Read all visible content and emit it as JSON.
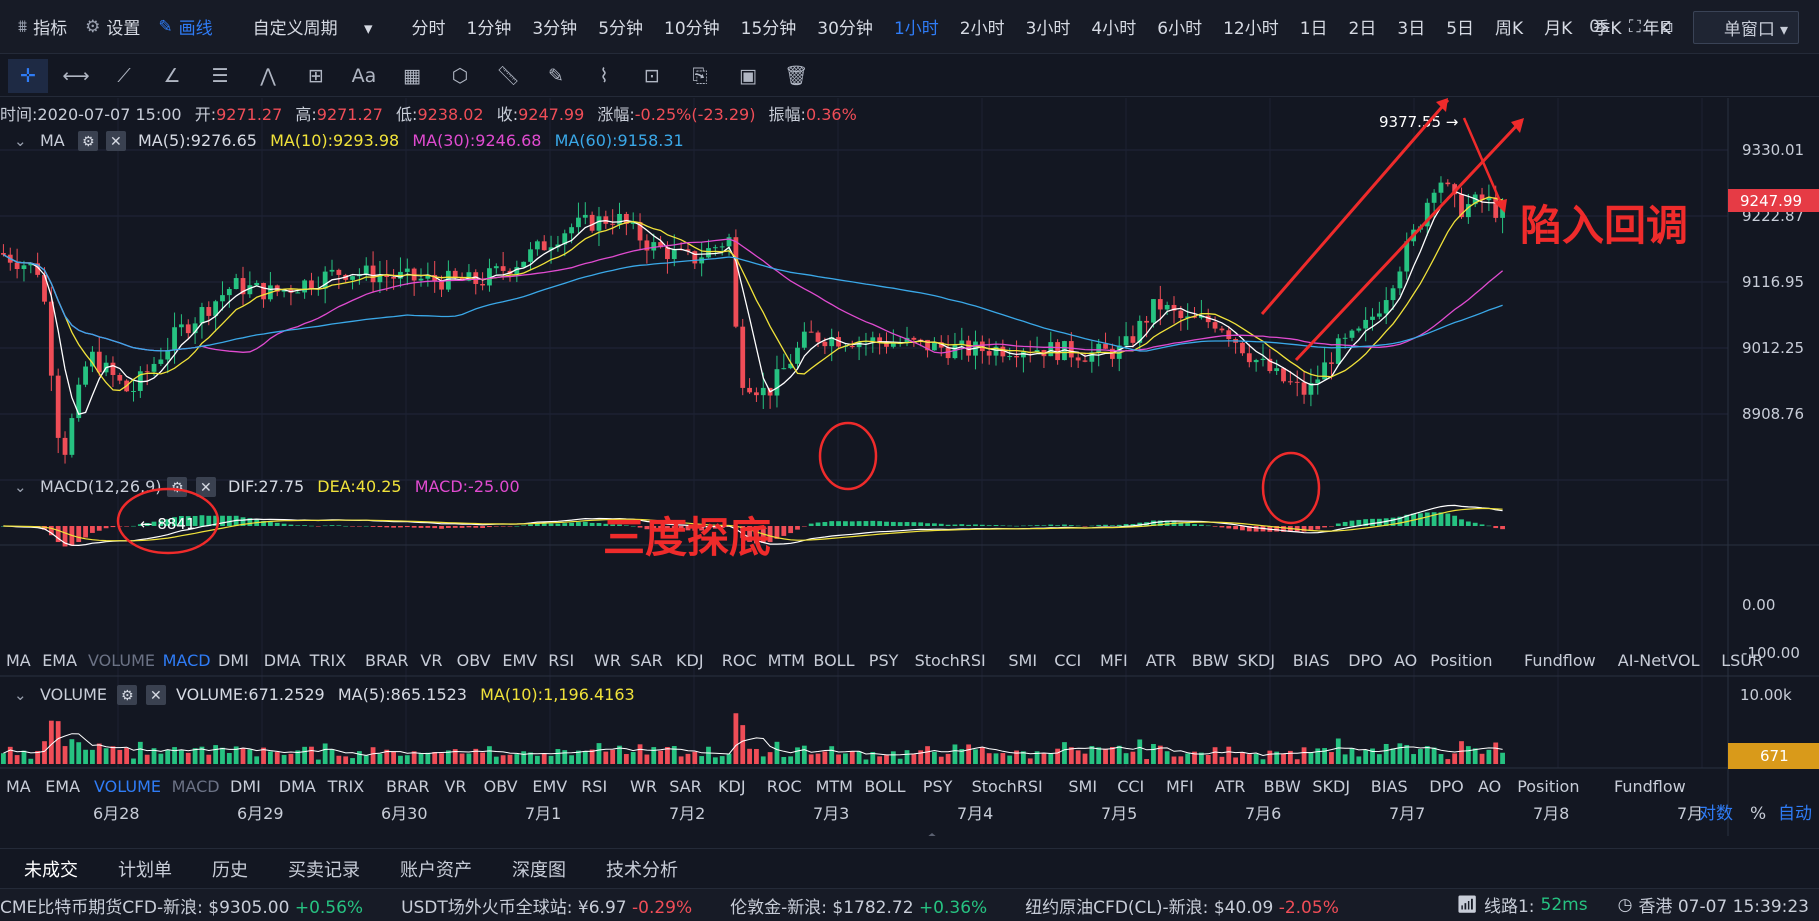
{
  "topbar": {
    "indicators": "指标",
    "settings": "设置",
    "draw": "画线",
    "custom_period": "自定义周期",
    "periods": [
      "分时",
      "1分钟",
      "3分钟",
      "5分钟",
      "10分钟",
      "15分钟",
      "30分钟",
      "1小时",
      "2小时",
      "3小时",
      "4小时",
      "6小时",
      "12小时",
      "1日",
      "2日",
      "3日",
      "5日",
      "周K",
      "月K",
      "季K",
      "年K"
    ],
    "selected_period": "1小时",
    "latency": "0s",
    "window_mode": "单窗口"
  },
  "toolbar": {
    "tools": [
      "crosshair-icon",
      "horizontal-line-icon",
      "trend-line-icon",
      "angle-icon",
      "parallel-channel-icon",
      "wave-icon",
      "measure-icon",
      "text-icon",
      "fib-icon",
      "shape-icon",
      "ruler-icon",
      "brush-icon",
      "pattern-icon",
      "lock-icon",
      "copy-icon",
      "screenshot-icon",
      "trash-icon"
    ],
    "text_tool_label": "Aa"
  },
  "info": {
    "time_label": "时间:",
    "time": "2020-07-07 15:00",
    "open_label": "开:",
    "open": "9271.27",
    "high_label": "高:",
    "high": "9271.27",
    "low_label": "低:",
    "low": "9238.02",
    "close_label": "收:",
    "close": "9247.99",
    "change_label": "涨幅:",
    "change": "-0.25%(-23.29)",
    "amplitude_label": "振幅:",
    "amplitude": "0.36%"
  },
  "ma_legend": {
    "name": "MA",
    "ma5": "MA(5):9276.65",
    "ma10": "MA(10):9293.98",
    "ma30": "MA(30):9246.68",
    "ma60": "MA(60):9158.31"
  },
  "macd_legend": {
    "name": "MACD(12,26,9)",
    "dif": "DIF:27.75",
    "dea": "DEA:40.25",
    "macd": "MACD:-25.00"
  },
  "volume_legend": {
    "name": "VOLUME",
    "volume": "VOLUME:671.2529",
    "ma5": "MA(5):865.1523",
    "ma10": "MA(10):1,196.4163"
  },
  "indicator_tabs_1": [
    "MA",
    "EMA",
    "VOLUME",
    "MACD",
    "DMI",
    "DMA",
    "TRIX",
    "BRAR",
    "VR",
    "OBV",
    "EMV",
    "RSI",
    "WR",
    "SAR",
    "KDJ",
    "ROC",
    "MTM",
    "BOLL",
    "PSY",
    "StochRSI",
    "SMI",
    "CCI",
    "MFI",
    "ATR",
    "BBW",
    "SKDJ",
    "BIAS",
    "DPO",
    "AO",
    "Position",
    "Fundflow",
    "AI-NetVOL",
    "LSUR"
  ],
  "indicator_tabs_1_selected": "MACD",
  "indicator_tabs_1_dim": "VOLUME",
  "indicator_tabs_2": [
    "MA",
    "EMA",
    "VOLUME",
    "MACD",
    "DMI",
    "DMA",
    "TRIX",
    "BRAR",
    "VR",
    "OBV",
    "EMV",
    "RSI",
    "WR",
    "SAR",
    "KDJ",
    "ROC",
    "MTM",
    "BOLL",
    "PSY",
    "StochRSI",
    "SMI",
    "CCI",
    "MFI",
    "ATR",
    "BBW",
    "SKDJ",
    "BIAS",
    "DPO",
    "AO",
    "Position",
    "Fundflow"
  ],
  "indicator_tabs_2_selected": "VOLUME",
  "indicator_tabs_2_dim": "MACD",
  "annotations": {
    "low_label": "← 8841",
    "high_label": "9377.55 →",
    "triple_bottom": "三度探底",
    "pullback": "陷入回调"
  },
  "axis_controls": {
    "log": "对数",
    "percent": "%",
    "auto": "自动"
  },
  "bottom_tabs": [
    "未成交",
    "计划单",
    "历史",
    "买卖记录",
    "账户资产",
    "深度图",
    "技术分析"
  ],
  "bottom_tabs_selected": "未成交",
  "ticker": [
    {
      "name": "CME比特币期货CFD-新浪:",
      "price": "$9305.00",
      "change": "+0.56%",
      "dir": "up"
    },
    {
      "name": "USDT场外火币全球站:",
      "price": "¥6.97",
      "change": "-0.29%",
      "dir": "down"
    },
    {
      "name": "伦敦金-新浪:",
      "price": "$1782.72",
      "change": "+0.36%",
      "dir": "up"
    },
    {
      "name": "纽约原油CFD(CL)-新浪:",
      "price": "$40.09",
      "change": "-2.05%",
      "dir": "down"
    }
  ],
  "status": {
    "line_label": "线路1:",
    "latency": "52ms",
    "region_time": "香港 07-07 15:39:23"
  },
  "colors": {
    "up": "#26c281",
    "down": "#ef4d57",
    "ma5": "#ffffff",
    "ma10": "#f0e23a",
    "ma30": "#e04bd0",
    "ma60": "#3aa8e8",
    "accent": "#2f7cf6",
    "annotation": "#ef2b2b",
    "last_price_bg": "#e63b45",
    "volume_last_bg": "#d99a1a"
  },
  "chart_data": {
    "type": "candlestick",
    "symbol_interval": "1小时",
    "x_tick_labels": [
      "6月28",
      "6月29",
      "6月30",
      "7月1",
      "7月2",
      "7月3",
      "7月4",
      "7月5",
      "7月6",
      "7月7",
      "7月8",
      "7月"
    ],
    "price_axis_ticks": [
      "9330.01",
      "9222.87",
      "9116.95",
      "9012.25",
      "8908.76"
    ],
    "price_ylim": [
      8800,
      9420
    ],
    "last_price": "9247.99",
    "macd_axis_ticks": [
      "0.00",
      "-100.00"
    ],
    "volume_axis_ticks": [
      "10.00k"
    ],
    "volume_last": "671",
    "price_path": [
      [
        0,
        9205
      ],
      [
        12,
        9180
      ],
      [
        18,
        8915
      ],
      [
        26,
        9065
      ],
      [
        38,
        9010
      ],
      [
        52,
        9095
      ],
      [
        68,
        9160
      ],
      [
        80,
        9150
      ],
      [
        100,
        9180
      ],
      [
        122,
        9168
      ],
      [
        140,
        9165
      ],
      [
        154,
        9200
      ],
      [
        166,
        9240
      ],
      [
        180,
        9255
      ],
      [
        190,
        9215
      ],
      [
        202,
        9195
      ],
      [
        213,
        9225
      ],
      [
        216,
        9035
      ],
      [
        224,
        9010
      ],
      [
        236,
        9090
      ],
      [
        250,
        9085
      ],
      [
        264,
        9080
      ],
      [
        282,
        9070
      ],
      [
        300,
        9075
      ],
      [
        318,
        9065
      ],
      [
        328,
        9070
      ],
      [
        338,
        9135
      ],
      [
        346,
        9110
      ],
      [
        356,
        9110
      ],
      [
        366,
        9060
      ],
      [
        374,
        9030
      ],
      [
        382,
        9010
      ],
      [
        390,
        9070
      ],
      [
        398,
        9095
      ],
      [
        404,
        9140
      ],
      [
        414,
        9240
      ],
      [
        420,
        9315
      ],
      [
        426,
        9265
      ],
      [
        434,
        9280
      ],
      [
        440,
        9250
      ]
    ]
  }
}
